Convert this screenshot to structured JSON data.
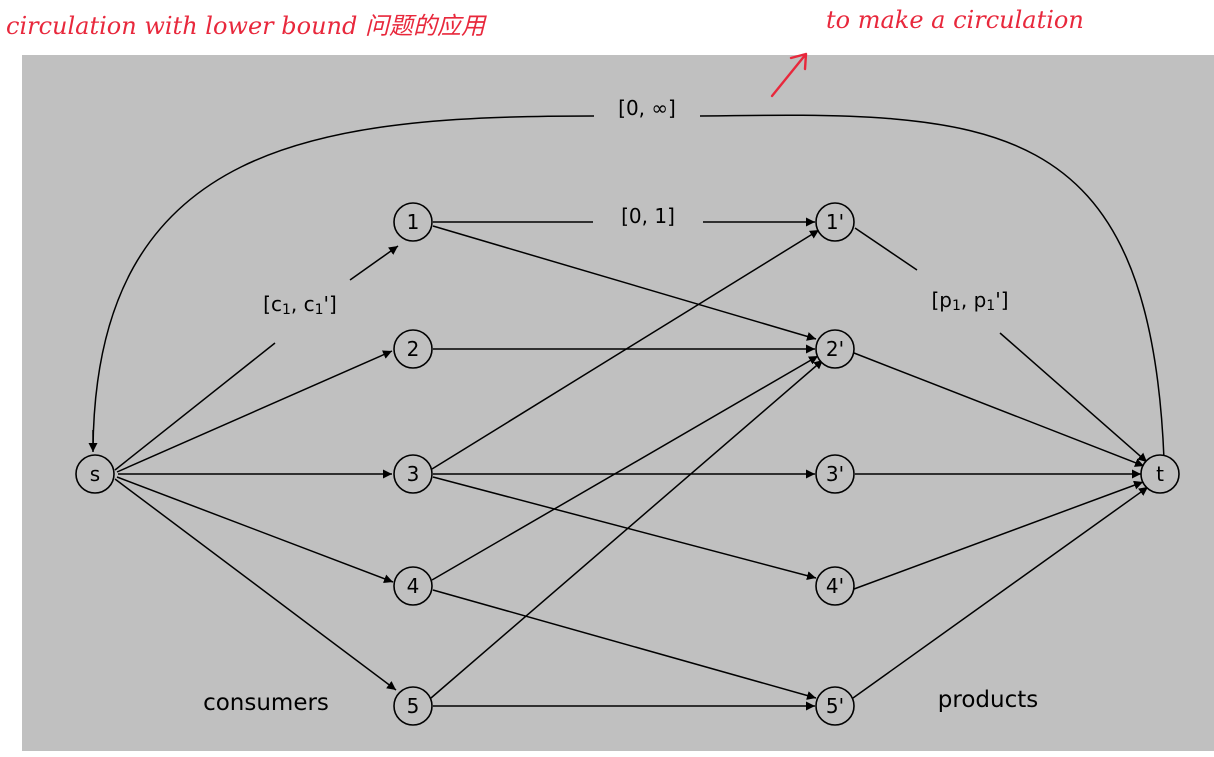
{
  "annotations": {
    "left_note": "circulation with lower bound 问题的应用",
    "right_note": "to make a circulation",
    "color": "#e8283c"
  },
  "diagram": {
    "background": "#c0c0c0",
    "nodes": {
      "s": "s",
      "c1": "1",
      "c2": "2",
      "c3": "3",
      "c4": "4",
      "c5": "5",
      "p1": "1'",
      "p2": "2'",
      "p3": "3'",
      "p4": "4'",
      "p5": "5'",
      "t": "t"
    },
    "edge_labels": {
      "back_edge": "[0, ∞]",
      "mid_edge": "[0, 1]",
      "source_edge_main": "[c",
      "source_edge_sub1": "1",
      "source_edge_comma": ", c",
      "source_edge_sub2": "1",
      "source_edge_end": "']",
      "sink_edge_main": "[p",
      "sink_edge_sub1": "1",
      "sink_edge_comma": ", p",
      "sink_edge_sub2": "1",
      "sink_edge_end": "']"
    },
    "group_labels": {
      "consumers": "consumers",
      "products": "products"
    }
  }
}
